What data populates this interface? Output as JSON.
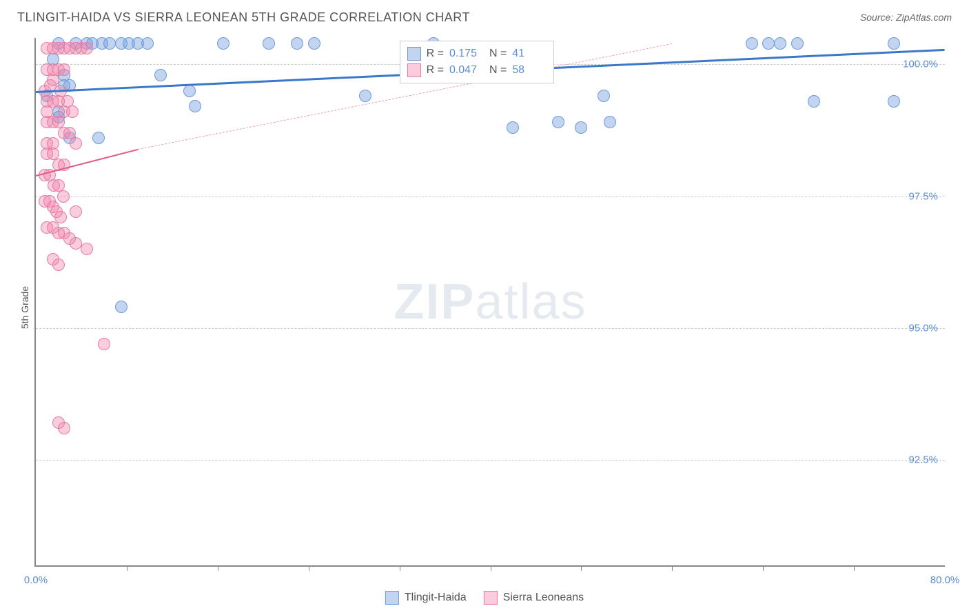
{
  "title": "TLINGIT-HAIDA VS SIERRA LEONEAN 5TH GRADE CORRELATION CHART",
  "source": "Source: ZipAtlas.com",
  "ylabel": "5th Grade",
  "watermark_bold": "ZIP",
  "watermark_light": "atlas",
  "chart": {
    "type": "scatter",
    "xlim": [
      0,
      80
    ],
    "ylim": [
      90.5,
      100.5
    ],
    "xtick_positions": [
      8,
      16,
      24,
      32,
      40,
      48,
      56,
      64,
      72
    ],
    "xtick_labels": {
      "left": "0.0%",
      "right": "80.0%"
    },
    "ytick_values": [
      92.5,
      95.0,
      97.5,
      100.0
    ],
    "ytick_labels": [
      "92.5%",
      "95.0%",
      "97.5%",
      "100.0%"
    ],
    "grid_color": "#cccccc",
    "background_color": "#ffffff",
    "axis_color": "#888888",
    "tick_font_color": "#5b8dd6",
    "series": [
      {
        "name": "Tlingit-Haida",
        "color_fill": "rgba(120,160,220,0.45)",
        "color_stroke": "#6a9bd8",
        "marker_radius": 9,
        "trend": {
          "x0": 0,
          "y0": 99.5,
          "x1": 80,
          "y1": 100.3,
          "color": "#3b78c9",
          "width": 3,
          "dashed": false
        },
        "R": "0.175",
        "N": "41",
        "points": [
          [
            2.0,
            100.4
          ],
          [
            3.5,
            100.4
          ],
          [
            4.5,
            100.4
          ],
          [
            5.0,
            100.4
          ],
          [
            5.8,
            100.4
          ],
          [
            6.5,
            100.4
          ],
          [
            7.5,
            100.4
          ],
          [
            8.2,
            100.4
          ],
          [
            9.0,
            100.4
          ],
          [
            9.8,
            100.4
          ],
          [
            16.5,
            100.4
          ],
          [
            20.5,
            100.4
          ],
          [
            23.0,
            100.4
          ],
          [
            24.5,
            100.4
          ],
          [
            35.0,
            100.4
          ],
          [
            2.5,
            99.6
          ],
          [
            3.0,
            99.6
          ],
          [
            11.0,
            99.8
          ],
          [
            13.5,
            99.5
          ],
          [
            14.0,
            99.2
          ],
          [
            29.0,
            99.4
          ],
          [
            50.0,
            99.4
          ],
          [
            42.0,
            98.8
          ],
          [
            46.0,
            98.9
          ],
          [
            48.0,
            98.8
          ],
          [
            50.5,
            98.9
          ],
          [
            2.0,
            99.1
          ],
          [
            7.5,
            95.4
          ],
          [
            63.0,
            100.4
          ],
          [
            64.5,
            100.4
          ],
          [
            65.5,
            100.4
          ],
          [
            67.0,
            100.4
          ],
          [
            68.5,
            99.3
          ],
          [
            75.5,
            99.3
          ],
          [
            75.5,
            100.4
          ],
          [
            3.0,
            98.6
          ],
          [
            5.5,
            98.6
          ],
          [
            1.0,
            99.4
          ],
          [
            2.0,
            99.0
          ],
          [
            1.5,
            100.1
          ],
          [
            2.5,
            99.8
          ]
        ]
      },
      {
        "name": "Sierra Leoneans",
        "color_fill": "rgba(240,130,170,0.40)",
        "color_stroke": "#e77aa3",
        "marker_radius": 9,
        "trend_solid": {
          "x0": 0,
          "y0": 97.9,
          "x1": 9,
          "y1": 98.4,
          "color": "#e15a8a",
          "width": 2
        },
        "trend_dashed": {
          "x0": 9,
          "y0": 98.4,
          "x1": 56,
          "y1": 100.4,
          "color": "#e8a0ba",
          "width": 1
        },
        "R": "0.047",
        "N": "58",
        "points": [
          [
            1.0,
            100.3
          ],
          [
            1.5,
            100.3
          ],
          [
            2.0,
            100.3
          ],
          [
            2.5,
            100.3
          ],
          [
            3.0,
            100.3
          ],
          [
            3.5,
            100.3
          ],
          [
            4.0,
            100.3
          ],
          [
            4.5,
            100.3
          ],
          [
            1.0,
            99.9
          ],
          [
            1.5,
            99.9
          ],
          [
            2.0,
            99.9
          ],
          [
            2.5,
            99.9
          ],
          [
            1.0,
            99.3
          ],
          [
            1.5,
            99.3
          ],
          [
            2.0,
            99.3
          ],
          [
            2.5,
            99.1
          ],
          [
            1.0,
            98.9
          ],
          [
            1.5,
            98.9
          ],
          [
            2.0,
            98.9
          ],
          [
            2.5,
            98.7
          ],
          [
            3.0,
            98.7
          ],
          [
            3.5,
            98.5
          ],
          [
            1.0,
            98.3
          ],
          [
            1.5,
            98.3
          ],
          [
            2.0,
            98.1
          ],
          [
            2.5,
            98.1
          ],
          [
            0.8,
            97.9
          ],
          [
            1.2,
            97.9
          ],
          [
            1.6,
            97.7
          ],
          [
            2.0,
            97.7
          ],
          [
            2.4,
            97.5
          ],
          [
            0.8,
            97.4
          ],
          [
            1.2,
            97.4
          ],
          [
            1.5,
            97.3
          ],
          [
            1.8,
            97.2
          ],
          [
            2.2,
            97.1
          ],
          [
            3.5,
            97.2
          ],
          [
            1.0,
            96.9
          ],
          [
            1.5,
            96.9
          ],
          [
            2.0,
            96.8
          ],
          [
            2.5,
            96.8
          ],
          [
            3.0,
            96.7
          ],
          [
            3.5,
            96.6
          ],
          [
            4.5,
            96.5
          ],
          [
            1.5,
            96.3
          ],
          [
            2.0,
            96.2
          ],
          [
            6.0,
            94.7
          ],
          [
            2.0,
            93.2
          ],
          [
            2.5,
            93.1
          ],
          [
            1.0,
            98.5
          ],
          [
            1.5,
            98.5
          ],
          [
            0.8,
            99.5
          ],
          [
            1.0,
            99.1
          ],
          [
            1.3,
            99.6
          ],
          [
            1.5,
            99.7
          ],
          [
            2.2,
            99.5
          ],
          [
            2.8,
            99.3
          ],
          [
            3.2,
            99.1
          ]
        ]
      }
    ]
  },
  "stats_box": {
    "labels": {
      "R": "R =",
      "N": "N ="
    }
  },
  "legend": {
    "series1": "Tlingit-Haida",
    "series2": "Sierra Leoneans"
  }
}
